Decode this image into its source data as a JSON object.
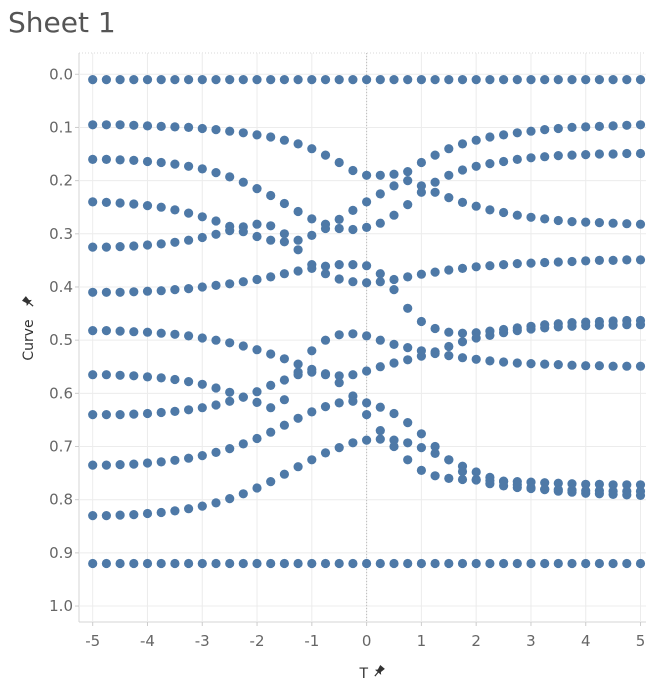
{
  "sheet": {
    "title": "Sheet 1"
  },
  "chart_data": {
    "type": "scatter",
    "title": "Sheet 1",
    "xlabel": "T",
    "ylabel": "Curve",
    "x_field_icon": "pin-icon",
    "y_field_icon": "pin-icon",
    "xlim": [
      -5.25,
      5.1
    ],
    "ylim": [
      1.03,
      -0.04
    ],
    "y_reversed": true,
    "x_ticks": [
      -5,
      -4,
      -3,
      -2,
      -1,
      0,
      1,
      2,
      3,
      4,
      5
    ],
    "x_tick_labels": [
      "-5",
      "-4",
      "-3",
      "-2",
      "-1",
      "0",
      "1",
      "2",
      "3",
      "4",
      "5"
    ],
    "y_ticks": [
      0.0,
      0.1,
      0.2,
      0.3,
      0.4,
      0.5,
      0.6,
      0.7,
      0.8,
      0.9,
      1.0
    ],
    "y_tick_labels": [
      "0.0",
      "0.1",
      "0.2",
      "0.3",
      "0.4",
      "0.5",
      "0.6",
      "0.7",
      "0.8",
      "0.9",
      "1.0"
    ],
    "grid": true,
    "zero_line_x": 0,
    "marker_color": "#4e79a7",
    "x_step": 0.25,
    "x_start": -5.0,
    "x_end": 5.0,
    "series": [
      {
        "values": [
          0.01,
          0.01,
          0.01,
          0.01,
          0.01,
          0.01,
          0.01,
          0.01,
          0.01,
          0.01,
          0.01,
          0.01,
          0.01,
          0.01,
          0.01,
          0.01,
          0.01,
          0.01,
          0.01,
          0.01,
          0.01,
          0.01,
          0.01,
          0.01,
          0.01,
          0.01,
          0.01,
          0.01,
          0.01,
          0.01,
          0.01,
          0.01,
          0.01,
          0.01,
          0.01,
          0.01,
          0.01,
          0.01,
          0.01,
          0.01,
          0.01
        ]
      },
      {
        "values": [
          0.095,
          0.095,
          0.095,
          0.096,
          0.097,
          0.098,
          0.099,
          0.1,
          0.102,
          0.104,
          0.107,
          0.11,
          0.114,
          0.118,
          0.124,
          0.131,
          0.14,
          0.152,
          0.166,
          0.181,
          0.19,
          0.19,
          0.188,
          0.183,
          0.166,
          0.152,
          0.14,
          0.131,
          0.124,
          0.118,
          0.114,
          0.11,
          0.107,
          0.104,
          0.102,
          0.1,
          0.099,
          0.098,
          0.097,
          0.096,
          0.095
        ]
      },
      {
        "values": [
          0.16,
          0.16,
          0.161,
          0.162,
          0.164,
          0.166,
          0.169,
          0.173,
          0.178,
          0.185,
          0.193,
          0.203,
          0.215,
          0.228,
          0.243,
          0.258,
          0.272,
          0.282,
          0.29,
          0.292,
          0.288,
          0.28,
          0.265,
          0.245,
          0.222,
          0.203,
          0.19,
          0.18,
          0.173,
          0.168,
          0.164,
          0.16,
          0.157,
          0.155,
          0.153,
          0.152,
          0.151,
          0.15,
          0.15,
          0.149,
          0.149
        ]
      },
      {
        "values": [
          0.24,
          0.241,
          0.242,
          0.244,
          0.247,
          0.25,
          0.255,
          0.261,
          0.268,
          0.276,
          0.286,
          0.296,
          0.305,
          0.312,
          0.315,
          0.312,
          0.303,
          0.29,
          0.273,
          0.256,
          0.24,
          0.225,
          0.21,
          0.2,
          0.21,
          0.222,
          0.232,
          0.241,
          0.248,
          0.255,
          0.26,
          0.265,
          0.269,
          0.272,
          0.275,
          0.277,
          0.278,
          0.279,
          0.28,
          0.281,
          0.282
        ]
      },
      {
        "values": [
          0.325,
          0.325,
          0.324,
          0.323,
          0.321,
          0.319,
          0.316,
          0.312,
          0.307,
          0.301,
          0.294,
          0.287,
          0.282,
          0.285,
          0.3,
          0.33,
          0.358,
          0.375,
          0.385,
          0.39,
          0.392,
          0.39,
          0.386,
          0.381,
          0.376,
          0.372,
          0.368,
          0.365,
          0.362,
          0.36,
          0.358,
          0.356,
          0.355,
          0.354,
          0.353,
          0.352,
          0.351,
          0.35,
          0.35,
          0.349,
          0.349
        ]
      },
      {
        "values": [
          0.41,
          0.41,
          0.41,
          0.409,
          0.408,
          0.407,
          0.405,
          0.403,
          0.4,
          0.397,
          0.394,
          0.39,
          0.386,
          0.381,
          0.375,
          0.37,
          0.365,
          0.361,
          0.358,
          0.358,
          0.36,
          0.375,
          0.405,
          0.44,
          0.465,
          0.478,
          0.485,
          0.487,
          0.486,
          0.483,
          0.48,
          0.477,
          0.474,
          0.471,
          0.469,
          0.467,
          0.466,
          0.465,
          0.464,
          0.463,
          0.463
        ]
      },
      {
        "values": [
          0.482,
          0.482,
          0.483,
          0.484,
          0.485,
          0.487,
          0.489,
          0.492,
          0.496,
          0.5,
          0.505,
          0.511,
          0.518,
          0.526,
          0.535,
          0.545,
          0.555,
          0.563,
          0.567,
          0.565,
          0.558,
          0.55,
          0.543,
          0.537,
          0.53,
          0.522,
          0.512,
          0.503,
          0.496,
          0.491,
          0.486,
          0.482,
          0.479,
          0.477,
          0.475,
          0.474,
          0.473,
          0.472,
          0.472,
          0.471,
          0.471
        ]
      },
      {
        "values": [
          0.565,
          0.565,
          0.566,
          0.567,
          0.569,
          0.571,
          0.574,
          0.578,
          0.583,
          0.59,
          0.598,
          0.607,
          0.617,
          0.627,
          0.612,
          0.56,
          0.52,
          0.5,
          0.49,
          0.488,
          0.492,
          0.5,
          0.508,
          0.514,
          0.52,
          0.525,
          0.529,
          0.533,
          0.536,
          0.539,
          0.541,
          0.543,
          0.544,
          0.545,
          0.546,
          0.547,
          0.548,
          0.548,
          0.549,
          0.549,
          0.549
        ]
      },
      {
        "values": [
          0.64,
          0.64,
          0.64,
          0.639,
          0.638,
          0.636,
          0.634,
          0.631,
          0.627,
          0.622,
          0.615,
          0.607,
          0.597,
          0.585,
          0.575,
          0.565,
          0.56,
          0.565,
          0.58,
          0.605,
          0.64,
          0.67,
          0.7,
          0.725,
          0.745,
          0.755,
          0.76,
          0.762,
          0.763,
          0.764,
          0.765,
          0.766,
          0.767,
          0.768,
          0.769,
          0.77,
          0.771,
          0.771,
          0.772,
          0.772,
          0.772
        ]
      },
      {
        "values": [
          0.735,
          0.735,
          0.734,
          0.733,
          0.731,
          0.729,
          0.726,
          0.722,
          0.717,
          0.711,
          0.704,
          0.695,
          0.685,
          0.673,
          0.66,
          0.647,
          0.635,
          0.625,
          0.618,
          0.615,
          0.618,
          0.626,
          0.638,
          0.655,
          0.676,
          0.7,
          0.725,
          0.747,
          0.762,
          0.77,
          0.774,
          0.777,
          0.779,
          0.78,
          0.781,
          0.782,
          0.783,
          0.783,
          0.784,
          0.784,
          0.784
        ]
      },
      {
        "values": [
          0.83,
          0.83,
          0.829,
          0.828,
          0.826,
          0.824,
          0.821,
          0.817,
          0.812,
          0.806,
          0.798,
          0.789,
          0.778,
          0.766,
          0.752,
          0.738,
          0.725,
          0.712,
          0.702,
          0.693,
          0.688,
          0.686,
          0.688,
          0.693,
          0.702,
          0.713,
          0.725,
          0.737,
          0.748,
          0.758,
          0.766,
          0.772,
          0.777,
          0.781,
          0.784,
          0.786,
          0.788,
          0.789,
          0.79,
          0.791,
          0.792
        ]
      },
      {
        "values": [
          0.92,
          0.92,
          0.92,
          0.92,
          0.92,
          0.92,
          0.92,
          0.92,
          0.92,
          0.92,
          0.92,
          0.92,
          0.92,
          0.92,
          0.92,
          0.92,
          0.92,
          0.92,
          0.92,
          0.92,
          0.92,
          0.92,
          0.92,
          0.92,
          0.92,
          0.92,
          0.92,
          0.92,
          0.92,
          0.92,
          0.92,
          0.92,
          0.92,
          0.92,
          0.92,
          0.92,
          0.92,
          0.92,
          0.92,
          0.92,
          0.92
        ]
      }
    ]
  }
}
